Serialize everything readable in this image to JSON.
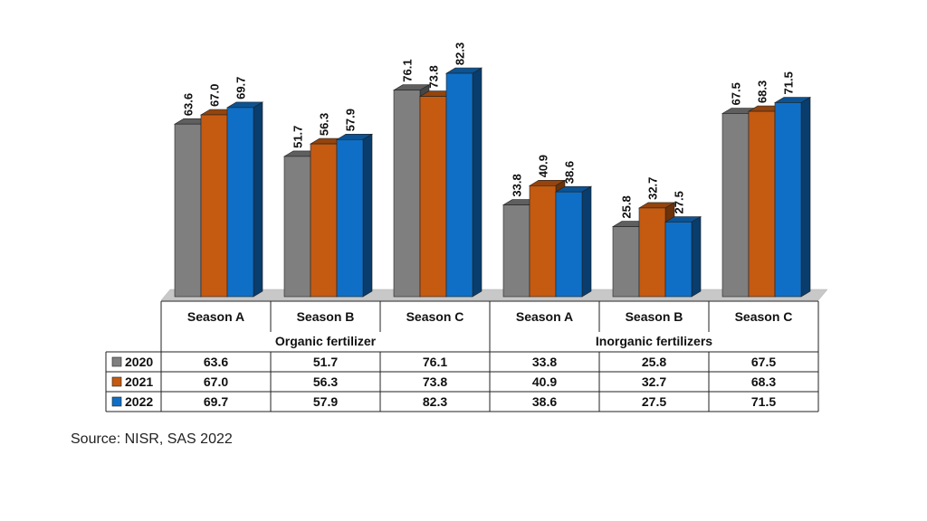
{
  "chart_data": {
    "type": "bar",
    "categories": [
      "Season A",
      "Season B",
      "Season C",
      "Season A",
      "Season B",
      "Season C"
    ],
    "groups": [
      {
        "label": "Organic fertilizer",
        "categories": [
          "Season A",
          "Season B",
          "Season C"
        ]
      },
      {
        "label": "Inorganic fertilizers",
        "categories": [
          "Season A",
          "Season B",
          "Season C"
        ]
      }
    ],
    "series": [
      {
        "name": "2020",
        "color": "#7f7f7f",
        "values": [
          63.6,
          51.7,
          76.1,
          33.8,
          25.8,
          67.5
        ]
      },
      {
        "name": "2021",
        "color": "#c55a11",
        "values": [
          67.0,
          56.3,
          73.8,
          40.9,
          32.7,
          68.3
        ]
      },
      {
        "name": "2022",
        "color": "#0f6fc6",
        "values": [
          69.7,
          57.9,
          82.3,
          38.6,
          27.5,
          71.5
        ]
      }
    ],
    "value_labels": [
      [
        "63.6",
        "51.7",
        "76.1",
        "33.8",
        "25.8",
        "67.5"
      ],
      [
        "67.0",
        "56.3",
        "73.8",
        "40.9",
        "32.7",
        "68.3"
      ],
      [
        "69.7",
        "57.9",
        "82.3",
        "38.6",
        "27.5",
        "71.5"
      ]
    ],
    "ylim": [
      0,
      100
    ],
    "data_table": true,
    "title": "",
    "xlabel": "",
    "ylabel": ""
  },
  "source": "Source: NISR, SAS 2022"
}
